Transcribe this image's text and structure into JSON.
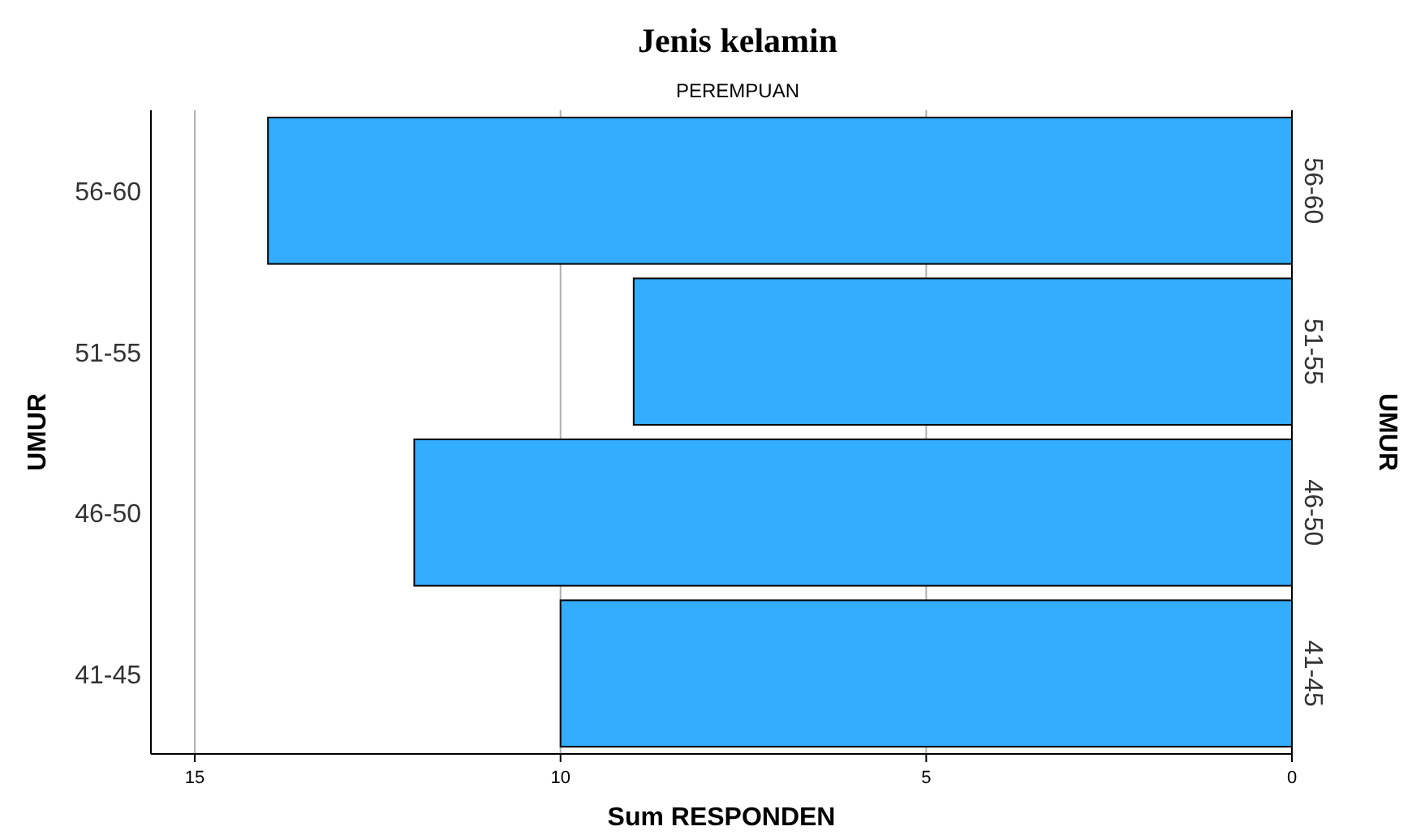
{
  "chart_data": {
    "type": "bar",
    "orientation": "horizontal",
    "title": "Jenis kelamin",
    "subtitle": "PEREMPUAN",
    "xlabel": "Sum RESPONDEN",
    "ylabel": "UMUR",
    "y2label": "UMUR",
    "categories": [
      "56-60",
      "51-55",
      "46-50",
      "41-45"
    ],
    "values": [
      14,
      9,
      12,
      10
    ],
    "color": "#33adff",
    "xlim": [
      15.6,
      0
    ],
    "xticks": [
      15,
      10,
      5,
      0
    ],
    "grid": "x"
  }
}
